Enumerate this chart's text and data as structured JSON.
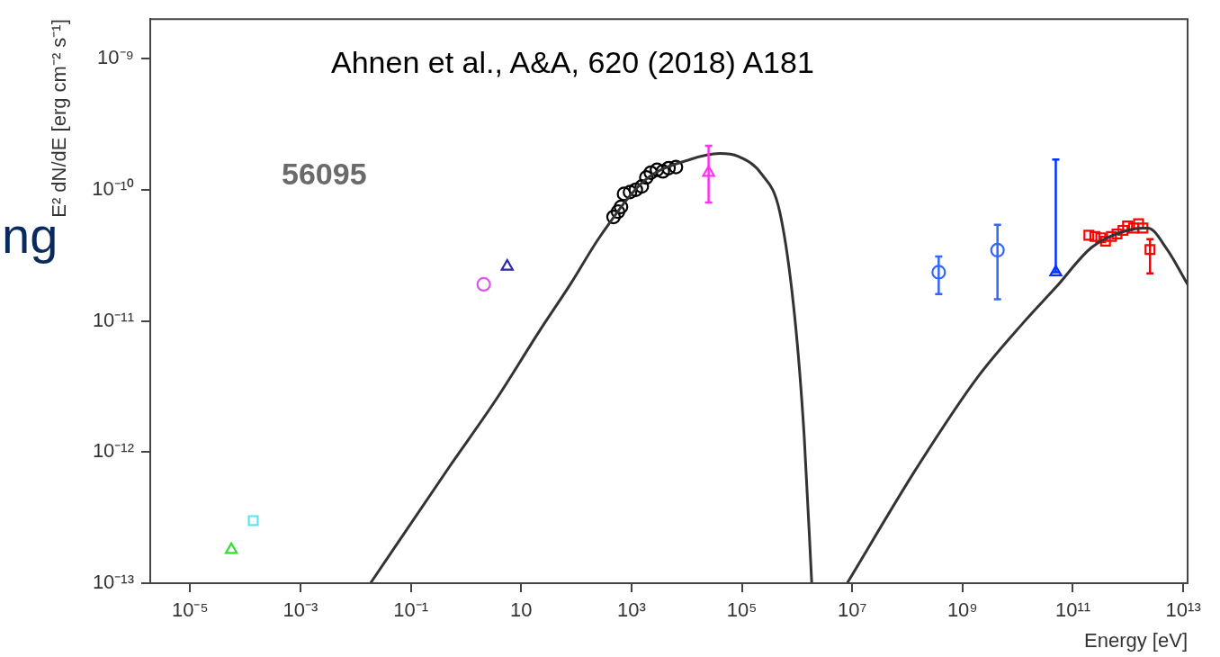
{
  "chart_data": {
    "type": "scatter",
    "xlabel": "Energy [eV]",
    "ylabel": "E² dN/dE [erg cm⁻² s⁻¹]",
    "log": "xy",
    "grid": false,
    "annotations": [
      "Ahnen et al., A&A, 620 (2018) A181",
      "56095",
      "ng"
    ],
    "xlim": [
      1.9e-06,
      12000000000000.0
    ],
    "ylim": [
      1e-13,
      2e-09
    ],
    "xticks": [
      {
        "value": 1e-05,
        "label": "10⁻⁵"
      },
      {
        "value": 0.001,
        "label": "10⁻³"
      },
      {
        "value": 0.1,
        "label": "10⁻¹"
      },
      10,
      {
        "value": 1000,
        "label": "10³"
      },
      {
        "value": 100000.0,
        "label": "10⁵"
      },
      {
        "value": 10000000.0,
        "label": "10⁷"
      },
      {
        "value": 1000000000.0,
        "label": "10⁹"
      },
      {
        "value": 100000000000.0,
        "label": "10¹¹"
      },
      {
        "value": 10000000000000.0,
        "label": "10¹³"
      }
    ],
    "yticks": [
      {
        "value": 1e-13,
        "label": "10⁻¹³"
      },
      {
        "value": 1e-12,
        "label": "10⁻¹²"
      },
      {
        "value": 1e-11,
        "label": "10⁻¹¹"
      },
      {
        "value": 1e-10,
        "label": "10⁻¹⁰"
      },
      {
        "value": 1e-09,
        "label": "10⁻⁹"
      }
    ],
    "series": [
      {
        "type": "line",
        "color": "#333333",
        "marker": "none",
        "x": [
          0.0186,
          0.51,
          3.4,
          22,
          78,
          270,
          1740,
          11500,
          40000,
          85000,
          230000,
          490000,
          910000,
          1350000,
          1850000
        ],
        "values": [
          1e-13,
          7.8e-13,
          2.46e-12,
          8.5e-12,
          1.9e-11,
          4.4e-11,
          1.18e-10,
          1.7e-10,
          1.89e-10,
          1.8e-10,
          1.31e-10,
          6.7e-11,
          1.07e-11,
          1.32e-12,
          1e-13
        ]
      },
      {
        "type": "line",
        "color": "#333333",
        "marker": "none",
        "x": [
          8100000.0,
          155000000.0,
          1900000000.0,
          12400000000.0,
          49000000000.0,
          220000000000.0,
          980000000000.0,
          2300000000000.0,
          5000000000000.0,
          12000000000000.0
        ],
        "values": [
          1e-13,
          7.8e-13,
          3.75e-12,
          9.6e-12,
          1.8e-11,
          3.64e-11,
          4.9e-11,
          5.1e-11,
          3.55e-11,
          1.9e-11
        ]
      },
      {
        "color": "#33dd33",
        "marker": "triangle",
        "x": [
          5.6e-05
        ],
        "values": [
          1.8e-13
        ]
      },
      {
        "color": "#55e6ee",
        "marker": "square",
        "x": [
          0.00014
        ],
        "values": [
          3e-13
        ]
      },
      {
        "color": "#dd55ee",
        "marker": "circle",
        "x": [
          2.1
        ],
        "values": [
          1.9e-11
        ]
      },
      {
        "color": "#2a2aa8",
        "marker": "triangle",
        "x": [
          5.6
        ],
        "values": [
          2.6e-11
        ]
      },
      {
        "color": "#000000",
        "marker": "circle",
        "x": [
          473,
          570,
          646,
          733,
          940,
          1200,
          1540,
          1860,
          2240,
          2900,
          3700,
          4700,
          6400
        ],
        "values": [
          6.2e-11,
          6.8e-11,
          7.4e-11,
          9.3e-11,
          9.6e-11,
          1e-10,
          1.06e-10,
          1.24e-10,
          1.35e-10,
          1.42e-10,
          1.38e-10,
          1.46e-10,
          1.49e-10
        ]
      },
      {
        "color": "#ff33ee",
        "marker": "triangle",
        "x": [
          25000
        ],
        "values": [
          1.35e-10
        ],
        "errors": [
          [
            8e-11,
            2.16e-10
          ]
        ]
      },
      {
        "color": "#3366ff",
        "marker": "circle",
        "x": [
          370000000.0,
          4300000000.0
        ],
        "values": [
          2.35e-11,
          3.46e-11
        ],
        "errors": [
          [
            1.6e-11,
            3.1e-11
          ],
          [
            1.46e-11,
            5.4e-11
          ]
        ]
      },
      {
        "color": "#0033ff",
        "marker": "triangle",
        "x": [
          49000000000.0
        ],
        "values": [
          2.35e-11
        ],
        "errors": [
          [
            2.35e-11,
            1.7e-10
          ]
        ]
      },
      {
        "color": "#ff0000",
        "marker": "square",
        "x": [
          195000000000.0,
          250000000000.0,
          320000000000.0,
          390000000000.0,
          500000000000.0,
          630000000000.0,
          810000000000.0,
          980000000000.0,
          1260000000000.0,
          1550000000000.0,
          1860000000000.0,
          2500000000000.0
        ],
        "values": [
          4.5e-11,
          4.4e-11,
          4.3e-11,
          4.05e-11,
          4.4e-11,
          4.6e-11,
          4.9e-11,
          5.3e-11,
          5.1e-11,
          5.5e-11,
          5.1e-11,
          3.5e-11
        ],
        "errors": [
          null,
          null,
          null,
          null,
          null,
          null,
          null,
          null,
          null,
          null,
          null,
          [
            2.3e-11,
            4.2e-11
          ]
        ]
      }
    ]
  }
}
